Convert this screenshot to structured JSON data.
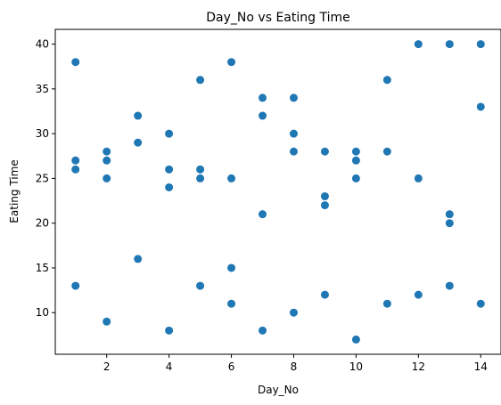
{
  "chart_data": {
    "type": "scatter",
    "title": "Day_No vs Eating Time",
    "xlabel": "Day_No",
    "ylabel": "Eating Time",
    "xlim": [
      0.35,
      14.65
    ],
    "ylim": [
      5.35,
      41.65
    ],
    "xticks": [
      2,
      4,
      6,
      8,
      10,
      12,
      14
    ],
    "yticks": [
      10,
      15,
      20,
      25,
      30,
      35,
      40
    ],
    "grid": false,
    "marker_color": "#1f77b4",
    "points": [
      {
        "x": 1,
        "y": 38
      },
      {
        "x": 1,
        "y": 27
      },
      {
        "x": 1,
        "y": 26
      },
      {
        "x": 1,
        "y": 13
      },
      {
        "x": 2,
        "y": 28
      },
      {
        "x": 2,
        "y": 27
      },
      {
        "x": 2,
        "y": 25
      },
      {
        "x": 2,
        "y": 9
      },
      {
        "x": 3,
        "y": 32
      },
      {
        "x": 3,
        "y": 29
      },
      {
        "x": 3,
        "y": 16
      },
      {
        "x": 4,
        "y": 30
      },
      {
        "x": 4,
        "y": 26
      },
      {
        "x": 4,
        "y": 24
      },
      {
        "x": 4,
        "y": 8
      },
      {
        "x": 5,
        "y": 36
      },
      {
        "x": 5,
        "y": 26
      },
      {
        "x": 5,
        "y": 25
      },
      {
        "x": 5,
        "y": 13
      },
      {
        "x": 6,
        "y": 38
      },
      {
        "x": 6,
        "y": 25
      },
      {
        "x": 6,
        "y": 15
      },
      {
        "x": 6,
        "y": 11
      },
      {
        "x": 7,
        "y": 34
      },
      {
        "x": 7,
        "y": 32
      },
      {
        "x": 7,
        "y": 21
      },
      {
        "x": 7,
        "y": 8
      },
      {
        "x": 8,
        "y": 34
      },
      {
        "x": 8,
        "y": 30
      },
      {
        "x": 8,
        "y": 28
      },
      {
        "x": 8,
        "y": 10
      },
      {
        "x": 9,
        "y": 28
      },
      {
        "x": 9,
        "y": 23
      },
      {
        "x": 9,
        "y": 22
      },
      {
        "x": 9,
        "y": 12
      },
      {
        "x": 10,
        "y": 28
      },
      {
        "x": 10,
        "y": 27
      },
      {
        "x": 10,
        "y": 25
      },
      {
        "x": 10,
        "y": 7
      },
      {
        "x": 11,
        "y": 36
      },
      {
        "x": 11,
        "y": 28
      },
      {
        "x": 11,
        "y": 11
      },
      {
        "x": 12,
        "y": 40
      },
      {
        "x": 12,
        "y": 25
      },
      {
        "x": 12,
        "y": 12
      },
      {
        "x": 13,
        "y": 40
      },
      {
        "x": 13,
        "y": 21
      },
      {
        "x": 13,
        "y": 20
      },
      {
        "x": 13,
        "y": 13
      },
      {
        "x": 14,
        "y": 40
      },
      {
        "x": 14,
        "y": 33
      },
      {
        "x": 14,
        "y": 11
      }
    ]
  }
}
